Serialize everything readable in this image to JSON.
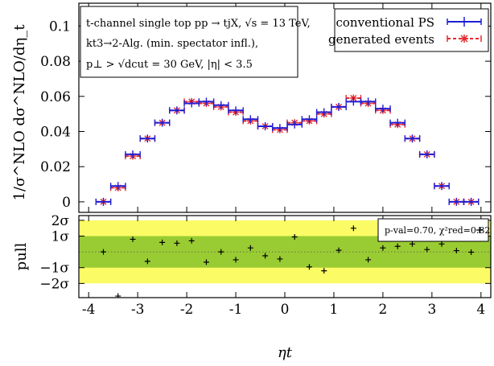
{
  "chart_data": [
    {
      "type": "line",
      "ylabel": "1/σ^NLO dσ^NLO/dη_t",
      "xlim": [
        -4.2,
        4.2
      ],
      "ylim": [
        -0.006,
        0.113
      ],
      "yticks": [
        "0.1",
        "0.08",
        "0.06",
        "0.04",
        "0.02",
        "0"
      ],
      "ytick_values": [
        0.1,
        0.08,
        0.06,
        0.04,
        0.02,
        0
      ],
      "info_box": [
        "t-channel single top  pp → tjX,  √s = 13 TeV,",
        "kt3→2-Alg. (min. spectator infl.),",
        "p⊥ > √dcut = 30 GeV,  |η| < 3.5"
      ],
      "legend_position": "top-right",
      "colors": {
        "conventional": "#1f1fd6",
        "generated": "#e8282c"
      },
      "bin_edges": [
        -3.85,
        -3.55,
        -3.25,
        -2.95,
        -2.65,
        -2.35,
        -2.05,
        -1.75,
        -1.45,
        -1.15,
        -0.85,
        -0.55,
        -0.25,
        0.05,
        0.35,
        0.65,
        0.95,
        1.25,
        1.55,
        1.85,
        2.15,
        2.45,
        2.75,
        3.05,
        3.35,
        3.65,
        3.95
      ],
      "series": [
        {
          "name": "conventional PS",
          "x": [
            -3.7,
            -3.4,
            -3.1,
            -2.8,
            -2.5,
            -2.2,
            -1.9,
            -1.6,
            -1.3,
            -1.0,
            -0.7,
            -0.4,
            -0.1,
            0.2,
            0.5,
            0.8,
            1.1,
            1.4,
            1.7,
            2.0,
            2.3,
            2.6,
            2.9,
            3.2,
            3.5,
            3.8
          ],
          "y": [
            0.0,
            0.009,
            0.027,
            0.036,
            0.045,
            0.052,
            0.056,
            0.057,
            0.055,
            0.052,
            0.047,
            0.043,
            0.042,
            0.044,
            0.047,
            0.051,
            0.054,
            0.057,
            0.057,
            0.053,
            0.045,
            0.036,
            0.027,
            0.009,
            0.0,
            0.0
          ]
        },
        {
          "name": "generated events",
          "x": [
            -3.7,
            -3.4,
            -3.1,
            -2.8,
            -2.5,
            -2.2,
            -1.9,
            -1.6,
            -1.3,
            -1.0,
            -0.7,
            -0.4,
            -0.1,
            0.2,
            0.5,
            0.8,
            1.1,
            1.4,
            1.7,
            2.0,
            2.3,
            2.6,
            2.9,
            3.2,
            3.5,
            3.8
          ],
          "y": [
            0.0,
            0.008,
            0.026,
            0.036,
            0.045,
            0.052,
            0.057,
            0.056,
            0.054,
            0.051,
            0.046,
            0.043,
            0.041,
            0.045,
            0.046,
            0.05,
            0.054,
            0.059,
            0.056,
            0.052,
            0.044,
            0.036,
            0.027,
            0.009,
            0.0,
            0.0
          ]
        }
      ]
    },
    {
      "type": "scatter",
      "ylabel": "pull",
      "xlabel": "ηt",
      "xlim": [
        -4.2,
        4.2
      ],
      "ylim": [
        -2.9,
        2.3
      ],
      "xticks": [
        "-4",
        "-3",
        "-2",
        "-1",
        "0",
        "1",
        "2",
        "3",
        "4"
      ],
      "xtick_values": [
        -4,
        -3,
        -2,
        -1,
        0,
        1,
        2,
        3,
        4
      ],
      "yticks": [
        "2σ",
        "1σ",
        "−1σ",
        "−2σ"
      ],
      "ytick_values": [
        2,
        1,
        -1,
        -2
      ],
      "bands": [
        {
          "from": -2,
          "to": 2,
          "color": "#fbfb66"
        },
        {
          "from": -1,
          "to": 1,
          "color": "#99cc33"
        }
      ],
      "annotation": "p-val=0.70,  χ²red=0.82",
      "legend_position": "top-right",
      "series": [
        {
          "name": "",
          "x": [
            -3.7,
            -3.4,
            -3.1,
            -2.8,
            -2.5,
            -2.2,
            -1.9,
            -1.6,
            -1.3,
            -1.0,
            -0.7,
            -0.4,
            -0.1,
            0.2,
            0.5,
            0.8,
            1.1,
            1.4,
            1.7,
            2.0,
            2.3,
            2.6,
            2.9,
            3.2,
            3.5,
            3.8
          ],
          "y": [
            0.0,
            -2.8,
            0.8,
            -0.6,
            0.6,
            0.55,
            0.7,
            -0.65,
            0.0,
            -0.5,
            0.25,
            -0.25,
            -0.45,
            0.95,
            -0.95,
            -1.2,
            0.1,
            1.5,
            -0.5,
            0.25,
            0.35,
            0.5,
            0.15,
            0.5,
            0.08,
            -0.02
          ]
        }
      ]
    }
  ]
}
